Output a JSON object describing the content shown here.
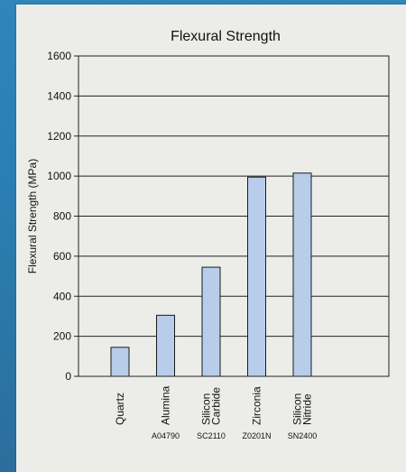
{
  "chart_data": {
    "type": "bar",
    "title": "Flexural Strength",
    "ylabel": "Flexural Strength (MPa)",
    "xlabel": "",
    "ylim": [
      0,
      1600
    ],
    "yticks": [
      0,
      200,
      400,
      600,
      800,
      1000,
      1200,
      1400,
      1600
    ],
    "grid": true,
    "categories": [
      {
        "lines": [
          "Quartz"
        ],
        "code": ""
      },
      {
        "lines": [
          "Alumina"
        ],
        "code": "A04790"
      },
      {
        "lines": [
          "Silicon",
          "Carbide"
        ],
        "code": "SC2110"
      },
      {
        "lines": [
          "Zirconia"
        ],
        "code": "Z0201N"
      },
      {
        "lines": [
          "Silicon",
          "Nitride"
        ],
        "code": "SN2400"
      }
    ],
    "values": [
      145,
      305,
      545,
      995,
      1015
    ],
    "bar_color": "#b7cde9",
    "bar_stroke": "#1a1a1a"
  }
}
